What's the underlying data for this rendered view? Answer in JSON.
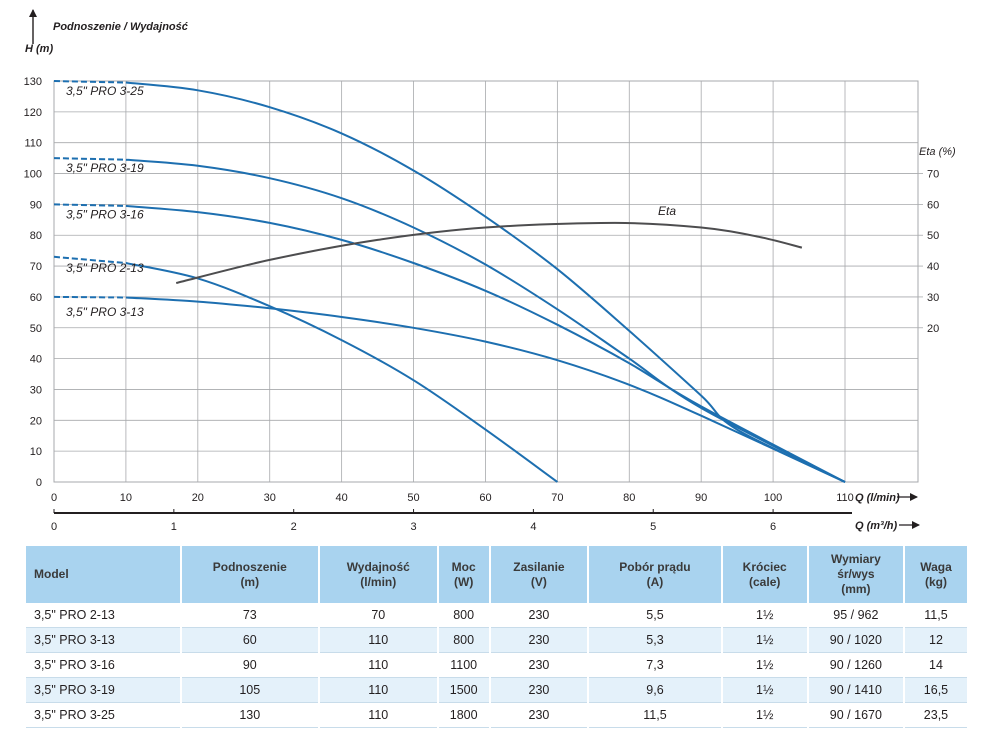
{
  "chart_data": {
    "type": "line",
    "ylabel_top": "Podnoszenie / Wydajność",
    "ylabel": "H (m)",
    "xlabel": "Q (l/min)",
    "xlabel2": "Q (m³/h)",
    "y2label": "Eta (%)",
    "ylim": [
      0,
      130
    ],
    "xlim": [
      0,
      110
    ],
    "yticks": [
      0,
      10,
      20,
      30,
      40,
      50,
      60,
      70,
      80,
      90,
      100,
      110,
      120,
      130
    ],
    "xticks": [
      0,
      10,
      20,
      30,
      40,
      50,
      60,
      70,
      80,
      90,
      100,
      110
    ],
    "x2ticks": [
      0,
      1,
      2,
      3,
      4,
      5,
      6
    ],
    "y2lim": [
      -30,
      100
    ],
    "y2ticks": [
      20,
      30,
      40,
      50,
      60,
      70
    ],
    "grid": true,
    "series": [
      {
        "name": "3,5\" PRO 3-25",
        "dashed_until": 10,
        "points": [
          [
            0,
            130
          ],
          [
            10,
            129.5
          ],
          [
            20,
            127
          ],
          [
            30,
            121.5
          ],
          [
            40,
            113
          ],
          [
            50,
            101
          ],
          [
            60,
            86
          ],
          [
            70,
            69
          ],
          [
            80,
            49
          ],
          [
            90,
            28
          ],
          [
            95,
            17
          ],
          [
            110,
            0
          ]
        ]
      },
      {
        "name": "3,5\" PRO 3-19",
        "dashed_until": 10,
        "points": [
          [
            0,
            105
          ],
          [
            10,
            104.5
          ],
          [
            20,
            102.5
          ],
          [
            30,
            98.5
          ],
          [
            40,
            92
          ],
          [
            50,
            82.5
          ],
          [
            60,
            70.5
          ],
          [
            70,
            56
          ],
          [
            80,
            40
          ],
          [
            90,
            24
          ],
          [
            110,
            0
          ]
        ]
      },
      {
        "name": "3,5\" PRO 3-16",
        "dashed_until": 10,
        "points": [
          [
            0,
            90
          ],
          [
            10,
            89.5
          ],
          [
            20,
            87.5
          ],
          [
            30,
            84
          ],
          [
            40,
            78.5
          ],
          [
            50,
            71
          ],
          [
            60,
            62
          ],
          [
            70,
            51
          ],
          [
            80,
            38.5
          ],
          [
            90,
            24.5
          ],
          [
            110,
            0
          ]
        ]
      },
      {
        "name": "3,5\" PRO 2-13",
        "dashed_until": 10,
        "points": [
          [
            0,
            73
          ],
          [
            10,
            71
          ],
          [
            20,
            66
          ],
          [
            30,
            57
          ],
          [
            40,
            46
          ],
          [
            50,
            33
          ],
          [
            60,
            17
          ],
          [
            70,
            0
          ]
        ]
      },
      {
        "name": "3,5\" PRO 3-13",
        "dashed_until": 10,
        "points": [
          [
            0,
            60
          ],
          [
            10,
            59.8
          ],
          [
            20,
            58.5
          ],
          [
            30,
            56.3
          ],
          [
            40,
            53.5
          ],
          [
            50,
            50
          ],
          [
            60,
            45.5
          ],
          [
            70,
            39.5
          ],
          [
            80,
            31.5
          ],
          [
            90,
            21.5
          ],
          [
            110,
            0
          ]
        ]
      },
      {
        "name": "Eta",
        "axis": "y2",
        "points": [
          [
            17,
            34.5
          ],
          [
            30,
            42
          ],
          [
            45,
            48.5
          ],
          [
            60,
            52.5
          ],
          [
            78,
            54
          ],
          [
            90,
            52.5
          ],
          [
            98,
            49.5
          ],
          [
            104,
            46
          ]
        ]
      }
    ]
  },
  "table": {
    "headers": [
      [
        "Model"
      ],
      [
        "Podnoszenie",
        "(m)"
      ],
      [
        "Wydajność",
        "(l/min)"
      ],
      [
        "Moc",
        "(W)"
      ],
      [
        "Zasilanie",
        "(V)"
      ],
      [
        "Pobór prądu",
        "(A)"
      ],
      [
        "Króciec",
        "(cale)"
      ],
      [
        "Wymiary",
        "śr/wys",
        "(mm)"
      ],
      [
        "Waga",
        "(kg)"
      ]
    ],
    "rows": [
      [
        "3,5\" PRO 2-13",
        "73",
        "70",
        "800",
        "230",
        "5,5",
        "1½",
        "95 / 962",
        "11,5"
      ],
      [
        "3,5\" PRO 3-13",
        "60",
        "110",
        "800",
        "230",
        "5,3",
        "1½",
        "90 / 1020",
        "12"
      ],
      [
        "3,5\" PRO 3-16",
        "90",
        "110",
        "1100",
        "230",
        "7,3",
        "1½",
        "90 / 1260",
        "14"
      ],
      [
        "3,5\" PRO 3-19",
        "105",
        "110",
        "1500",
        "230",
        "9,6",
        "1½",
        "90 / 1410",
        "16,5"
      ],
      [
        "3,5\" PRO 3-25",
        "130",
        "110",
        "1800",
        "230",
        "11,5",
        "1½",
        "90 / 1670",
        "23,5"
      ]
    ]
  },
  "colors": {
    "curve": "#1d6fb0",
    "eta": "#4d4d4f",
    "grid": "#a7a9ac",
    "header_bg": "#a9d3ef",
    "row_alt": "#e4f1fa"
  }
}
